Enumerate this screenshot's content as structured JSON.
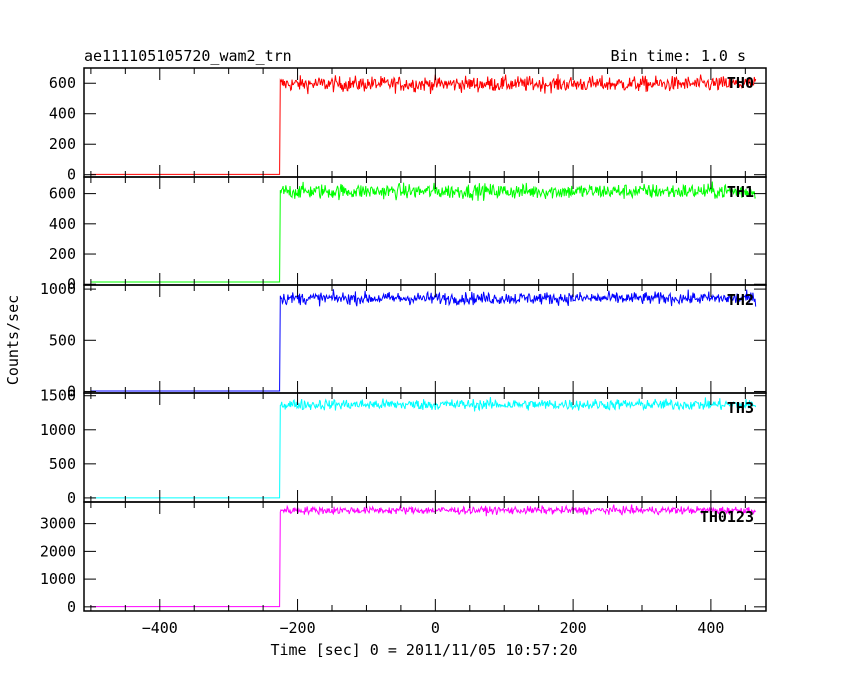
{
  "chart_data": {
    "type": "line",
    "title": "ae111105105720_wam2_trn",
    "bin_time": "Bin time: 1.0 s",
    "xlabel": "Time [sec] 0 = 2011/11/05 10:57:20",
    "ylabel": "Counts/sec",
    "xlim": [
      -510,
      480
    ],
    "xticks": [
      -400,
      -200,
      0,
      200,
      400
    ],
    "step_time": -225,
    "panels": [
      {
        "name": "TH0",
        "color": "#ff0000",
        "ylim": [
          -15,
          700
        ],
        "yticks": [
          0,
          200,
          400,
          600
        ],
        "pre_level": 2,
        "post_level": 595,
        "noise": 25
      },
      {
        "name": "TH1",
        "color": "#00ff00",
        "ylim": [
          -5,
          710
        ],
        "yticks": [
          0,
          200,
          400,
          600
        ],
        "pre_level": 15,
        "post_level": 615,
        "noise": 25
      },
      {
        "name": "TH2",
        "color": "#0000ff",
        "ylim": [
          -15,
          1040
        ],
        "yticks": [
          0,
          500,
          1000
        ],
        "pre_level": 5,
        "post_level": 910,
        "noise": 30
      },
      {
        "name": "TH3",
        "color": "#00ffff",
        "ylim": [
          -60,
          1540
        ],
        "yticks": [
          0,
          500,
          1000,
          1500
        ],
        "pre_level": 0,
        "post_level": 1370,
        "noise": 40
      },
      {
        "name": "TH0123",
        "color": "#ff00ff",
        "ylim": [
          -150,
          3780
        ],
        "yticks": [
          0,
          1000,
          2000,
          3000
        ],
        "pre_level": 10,
        "post_level": 3480,
        "noise": 70
      }
    ]
  }
}
